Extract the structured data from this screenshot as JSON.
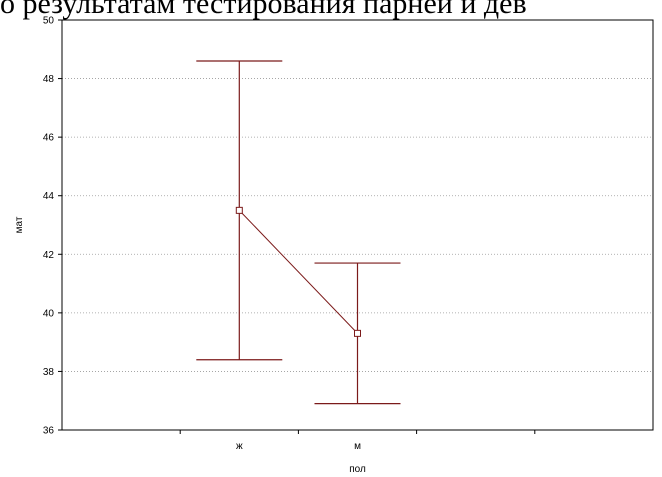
{
  "caption": "о результатам тестирования парней и дев",
  "chart_data": {
    "type": "line",
    "subtype": "means-with-error-bars",
    "xlabel": "пол",
    "ylabel": "мат",
    "categories": [
      "ж",
      "м"
    ],
    "series": [
      {
        "mean": [
          43.5,
          39.3
        ],
        "upper": [
          48.6,
          41.7
        ],
        "lower": [
          38.4,
          36.9
        ]
      }
    ],
    "ylim": [
      36,
      50
    ],
    "yticks": [
      36,
      38,
      40,
      42,
      44,
      46,
      48,
      50
    ],
    "grid": true,
    "colors": {
      "series": "#7b1a1a",
      "grid": "#9a9a9a",
      "frame": "#000000"
    }
  }
}
